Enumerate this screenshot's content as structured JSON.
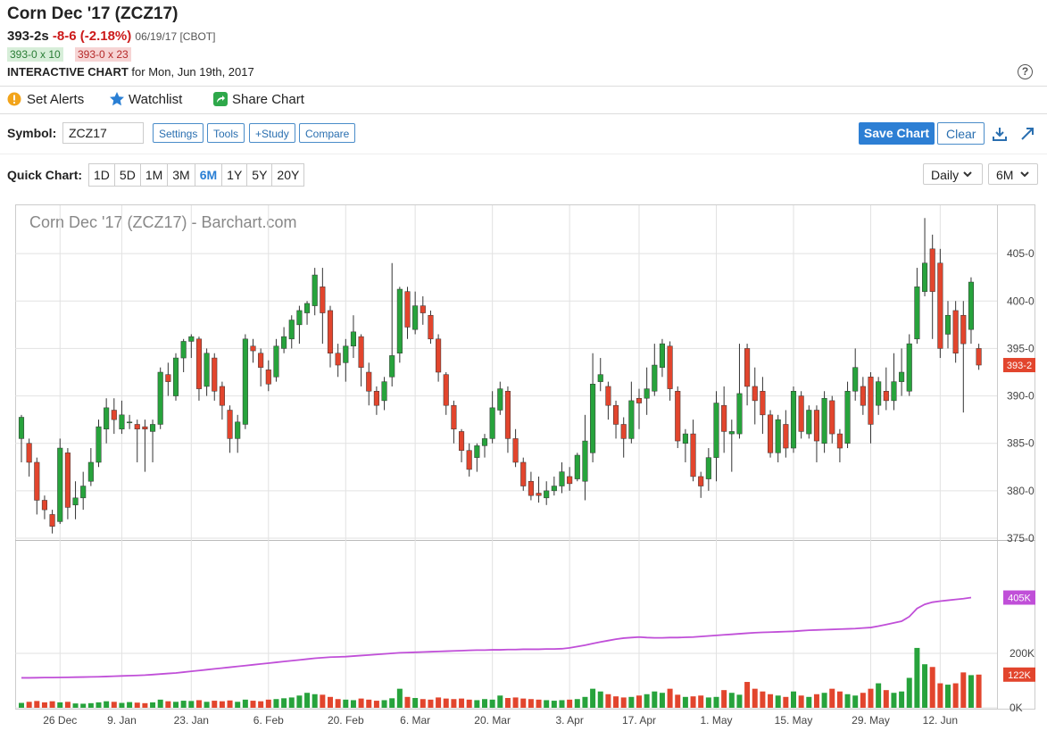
{
  "header": {
    "title": "Corn Dec '17 (ZCZ17)",
    "last": "393-2s",
    "change": "-8-6 (-2.18%)",
    "date": "06/19/17 [CBOT]",
    "bid": "393-0 x 10",
    "ask": "393-0 x 23",
    "chart_label": "INTERACTIVE CHART",
    "chart_date": "for Mon, Jun 19th, 2017",
    "help": "?"
  },
  "toolbar": {
    "items": [
      "Set Alerts",
      "Watchlist",
      "Share Chart"
    ]
  },
  "controls": {
    "symbol_label": "Symbol:",
    "symbol": "ZCZ17",
    "buttons": [
      "Settings",
      "Tools",
      "+Study",
      "Compare"
    ],
    "save": "Save Chart",
    "clear": "Clear",
    "quick_label": "Quick Chart:",
    "periods": [
      "1D",
      "5D",
      "1M",
      "3M",
      "6M",
      "1Y",
      "5Y",
      "20Y"
    ],
    "active_period": "6M",
    "interval": "Daily",
    "range": "6M"
  },
  "chart": {
    "type": "candlestick",
    "watermark": "Corn Dec '17 (ZCZ17) - Barchart.com",
    "grid": true,
    "up_color": "#27a33c",
    "down_color": "#e2452d",
    "oi_color": "#c04fd8",
    "ylim": [
      375,
      410
    ],
    "yticks": [
      {
        "value": 375,
        "label": "375-0"
      },
      {
        "value": 380,
        "label": "380-0"
      },
      {
        "value": 385,
        "label": "385-0"
      },
      {
        "value": 390,
        "label": "390-0"
      },
      {
        "value": 395,
        "label": "395-0"
      },
      {
        "value": 400,
        "label": "400-0"
      },
      {
        "value": 405,
        "label": "405-0"
      }
    ],
    "vol_ylim": [
      0,
      610000
    ],
    "vol_yticks": [
      {
        "value": 0,
        "label": "0K"
      },
      {
        "value": 200000,
        "label": "200K"
      }
    ],
    "xticks": [
      {
        "value": 5,
        "label": "26 Dec"
      },
      {
        "value": 13,
        "label": "9. Jan"
      },
      {
        "value": 22,
        "label": "23. Jan"
      },
      {
        "value": 32,
        "label": "6. Feb"
      },
      {
        "value": 42,
        "label": "20. Feb"
      },
      {
        "value": 51,
        "label": "6. Mar"
      },
      {
        "value": 61,
        "label": "20. Mar"
      },
      {
        "value": 71,
        "label": "3. Apr"
      },
      {
        "value": 80,
        "label": "17. Apr"
      },
      {
        "value": 90,
        "label": "1. May"
      },
      {
        "value": 100,
        "label": "15. May"
      },
      {
        "value": 110,
        "label": "29. May"
      },
      {
        "value": 119,
        "label": "12. Jun"
      }
    ],
    "open": [
      385.5,
      385,
      383,
      379,
      377.5,
      376.75,
      384,
      378.5,
      379.25,
      381,
      383,
      386.5,
      388.5,
      386.5,
      387.25,
      387,
      386.75,
      386.25,
      387,
      392.25,
      390,
      394,
      395.75,
      396,
      391,
      394,
      391,
      388.5,
      385.5,
      387,
      395.25,
      394.5,
      392.75,
      392,
      395,
      396,
      397.5,
      398.75,
      399.5,
      401.5,
      399,
      394.5,
      393.5,
      395.25,
      396.25,
      392.5,
      390.5,
      389.5,
      392,
      394.5,
      401,
      397,
      399.5,
      398.5,
      396,
      392.25,
      389,
      386.25,
      384.25,
      383.5,
      384.75,
      385.5,
      388.5,
      390.5,
      385.5,
      383,
      381,
      379.75,
      379.25,
      380,
      380.5,
      381.5,
      381.25,
      381,
      384,
      391.5,
      391,
      389,
      387,
      385.5,
      389.75,
      389.75,
      390.5,
      393,
      395.25,
      390.5,
      385,
      386,
      381.5,
      381.25,
      383.5,
      389,
      386,
      386,
      395,
      391,
      390.5,
      388,
      384,
      387,
      384.5,
      390,
      386,
      388.5,
      385,
      389.5,
      386,
      385,
      390.5,
      391,
      392,
      389,
      390.5,
      389.5,
      391.5,
      390.5,
      396,
      401,
      405.5,
      404,
      396.5,
      399,
      398.5,
      397,
      395
    ],
    "high": [
      388,
      385.5,
      383.5,
      379.5,
      378,
      385.5,
      384.5,
      381,
      382,
      384.5,
      387.5,
      389.75,
      389.75,
      389.5,
      388,
      387.5,
      387.5,
      387.5,
      393,
      393.5,
      394.5,
      396,
      396.5,
      396.25,
      395,
      394.5,
      391.5,
      389,
      388,
      396.5,
      396,
      395,
      393.75,
      396,
      397.25,
      398.5,
      399.5,
      400,
      403.5,
      403.5,
      399.5,
      395.5,
      396,
      398.5,
      396.5,
      393.5,
      391,
      392,
      404,
      401.5,
      401.5,
      401,
      400.5,
      399,
      396.5,
      392.5,
      389.5,
      386.5,
      385,
      385,
      386,
      390.5,
      391.5,
      391,
      386.5,
      383.5,
      382,
      381.5,
      381,
      381.5,
      383,
      382.5,
      384,
      388,
      394.5,
      394,
      391.5,
      389.5,
      387.75,
      391.5,
      390.75,
      393,
      395.5,
      396,
      395.75,
      391,
      386.5,
      387.5,
      382,
      384.5,
      390.5,
      391,
      387.5,
      395.5,
      395.5,
      393,
      392,
      388.5,
      388,
      388.5,
      391,
      390.5,
      389,
      389,
      390.5,
      390,
      386.5,
      391.5,
      395,
      392,
      392.5,
      392,
      393,
      394.5,
      395,
      396.5,
      403.5,
      408.75,
      407,
      405.5,
      400,
      400,
      400,
      402.5,
      395.5
    ],
    "low": [
      383,
      381.5,
      377.5,
      377,
      375.5,
      376.5,
      377,
      377,
      378,
      380.5,
      382.5,
      385,
      386,
      386,
      386.5,
      383,
      382,
      383,
      386.5,
      390,
      389.5,
      392.5,
      394,
      389.5,
      390,
      389.5,
      387.5,
      384,
      384,
      386.5,
      393.5,
      391,
      390.5,
      391.5,
      394.5,
      395,
      395.5,
      397.5,
      398.5,
      395.5,
      393,
      392,
      391.5,
      394,
      391,
      389,
      388,
      388.5,
      391,
      393.5,
      396,
      396.5,
      397.5,
      395.5,
      391.5,
      388,
      385,
      383,
      381.5,
      382,
      383.5,
      385,
      388,
      384,
      382.5,
      380,
      379,
      378.75,
      378.5,
      379.5,
      379.75,
      380,
      381,
      379,
      383,
      390.5,
      387.5,
      385.5,
      383.5,
      385,
      386.5,
      388,
      390,
      392,
      389.5,
      384.5,
      383,
      381,
      379.25,
      380,
      381,
      384,
      382,
      385.5,
      389,
      387,
      386,
      383.5,
      383,
      383.5,
      384,
      385.5,
      385.5,
      383,
      384,
      385,
      383,
      384.5,
      389.5,
      388,
      385,
      388,
      388.5,
      388.5,
      390,
      390,
      395.5,
      400.5,
      396,
      394,
      395,
      393.5,
      388.25,
      395.5,
      392.75
    ],
    "close": [
      387.75,
      383,
      379,
      378,
      376.25,
      384.5,
      378.25,
      379.25,
      380.5,
      383,
      386.75,
      388.75,
      387.5,
      388,
      387.25,
      386.5,
      386.5,
      387,
      392.5,
      391.5,
      394,
      395.75,
      396.25,
      390.75,
      394.5,
      390.5,
      389,
      385.5,
      387.25,
      396,
      394.75,
      393,
      391.25,
      395.25,
      396.25,
      398,
      399,
      399.75,
      402.75,
      398.75,
      394.5,
      393.25,
      395.25,
      396.75,
      393,
      390.5,
      389,
      391.5,
      394.25,
      401.25,
      397.25,
      399.5,
      398.75,
      396,
      392.5,
      389,
      386.5,
      384.25,
      382.25,
      384.75,
      385.5,
      388.75,
      390.75,
      385.5,
      383,
      380.5,
      379.5,
      379.5,
      380,
      380.5,
      382,
      380.75,
      383.75,
      385.25,
      391.25,
      392.25,
      389,
      387,
      385.5,
      389.5,
      389.25,
      390.75,
      393.25,
      395.5,
      390.75,
      385.25,
      386,
      381.5,
      380.5,
      383.5,
      389.25,
      386.25,
      386.25,
      390.25,
      391,
      389.5,
      388,
      384,
      387.5,
      384.5,
      390.5,
      386.25,
      388.5,
      385.25,
      389.75,
      386,
      384.5,
      390.5,
      393,
      389,
      387,
      391.5,
      389.5,
      391.5,
      392.5,
      395.5,
      401.5,
      404,
      401,
      395,
      398.5,
      394.5,
      395.5,
      402,
      393.25
    ],
    "volume": [
      18000,
      22000,
      25000,
      20000,
      24000,
      20000,
      22000,
      16000,
      15000,
      17000,
      20000,
      24000,
      22000,
      18000,
      21000,
      19000,
      17000,
      20000,
      30000,
      24000,
      22000,
      26000,
      25000,
      28000,
      22000,
      26000,
      24000,
      27000,
      22000,
      30000,
      26000,
      24000,
      30000,
      32000,
      35000,
      38000,
      45000,
      55000,
      50000,
      48000,
      40000,
      32000,
      30000,
      28000,
      34000,
      30000,
      26000,
      28000,
      35000,
      70000,
      40000,
      36000,
      32000,
      30000,
      38000,
      34000,
      32000,
      34000,
      30000,
      28000,
      32000,
      30000,
      45000,
      36000,
      38000,
      34000,
      32000,
      30000,
      28000,
      26000,
      28000,
      30000,
      32000,
      40000,
      70000,
      60000,
      50000,
      42000,
      38000,
      40000,
      45000,
      50000,
      60000,
      55000,
      70000,
      48000,
      40000,
      42000,
      45000,
      38000,
      40000,
      65000,
      55000,
      48000,
      95000,
      70000,
      60000,
      50000,
      45000,
      40000,
      60000,
      45000,
      40000,
      50000,
      55000,
      70000,
      60000,
      50000,
      45000,
      55000,
      70000,
      90000,
      65000,
      55000,
      60000,
      110000,
      220000,
      160000,
      150000,
      90000,
      85000,
      90000,
      130000,
      120000,
      122000
    ],
    "open_interest": [
      110000,
      110000,
      110500,
      111000,
      111000,
      111500,
      112000,
      112500,
      113000,
      113500,
      114000,
      115000,
      116000,
      117000,
      118000,
      119000,
      120000,
      122000,
      124000,
      126000,
      128000,
      131000,
      134000,
      137000,
      140000,
      143000,
      146000,
      149000,
      152000,
      155000,
      158000,
      161000,
      164000,
      167000,
      170000,
      173000,
      176000,
      179000,
      182000,
      184000,
      186000,
      187000,
      188000,
      190000,
      192000,
      194000,
      196000,
      198000,
      200000,
      202000,
      203000,
      204000,
      205000,
      206000,
      207000,
      208000,
      209000,
      210000,
      211000,
      212000,
      212000,
      213000,
      213000,
      214000,
      214000,
      215000,
      215000,
      215000,
      216000,
      216000,
      217000,
      220000,
      225000,
      230000,
      236000,
      242000,
      247000,
      252000,
      256000,
      258000,
      260000,
      258000,
      257000,
      257000,
      258000,
      258000,
      259000,
      260000,
      262000,
      264000,
      266000,
      268000,
      270000,
      272000,
      274000,
      276000,
      277000,
      278000,
      279000,
      280000,
      281000,
      283000,
      285000,
      286000,
      287000,
      288000,
      289000,
      290000,
      291000,
      293000,
      295000,
      300000,
      306000,
      312000,
      318000,
      335000,
      365000,
      380000,
      388000,
      392000,
      395000,
      398000,
      401000,
      405000,
      null
    ],
    "last_labels": {
      "close": "393-2",
      "volume": "122K",
      "open_interest": "405K"
    }
  }
}
